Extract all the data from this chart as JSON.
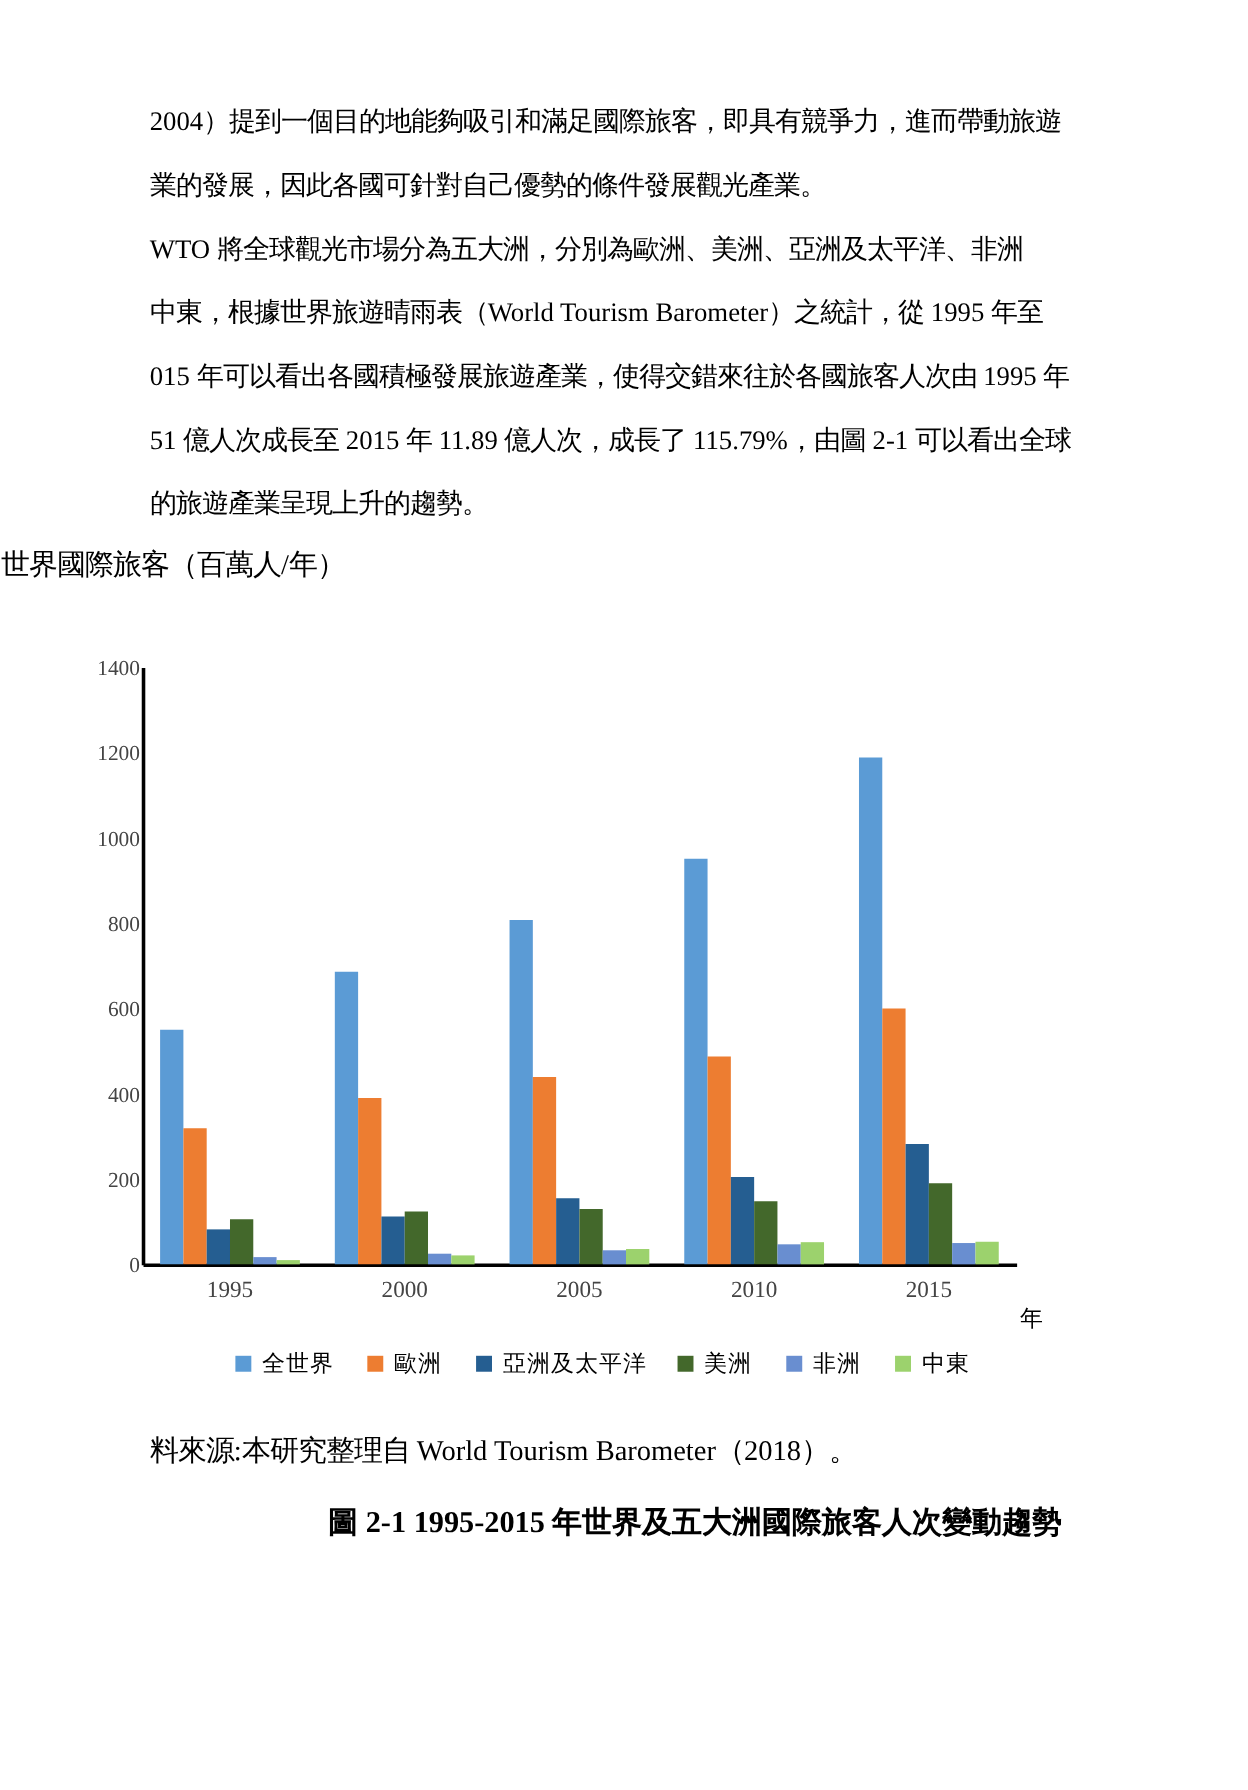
{
  "chart_data": {
    "type": "bar",
    "title": "圖 2-1 1995-2015 年世界及五大洲國際旅客人次變動趨勢",
    "ylabel": "世界國際旅客（百萬人/年）",
    "xlabel": "年",
    "categories": [
      "1995",
      "2000",
      "2005",
      "2010",
      "2015"
    ],
    "series": [
      {
        "name": "全世界",
        "color": "#5b9bd5",
        "values": [
          550,
          686,
          807,
          951,
          1188
        ]
      },
      {
        "name": "歐洲",
        "color": "#ed7d31",
        "values": [
          319,
          390,
          439,
          487,
          600
        ]
      },
      {
        "name": "亞洲及太平洋",
        "color": "#255e91",
        "values": [
          82,
          112,
          155,
          205,
          282
        ]
      },
      {
        "name": "美洲",
        "color": "#43682b",
        "values": [
          106,
          124,
          130,
          148,
          190
        ]
      },
      {
        "name": "非洲",
        "color": "#698ed0",
        "values": [
          17,
          25,
          33,
          47,
          50
        ]
      },
      {
        "name": "中東",
        "color": "#9cd26d",
        "values": [
          10,
          21,
          36,
          52,
          53
        ]
      }
    ],
    "ylim": [
      0,
      1400
    ],
    "yticks": [
      0,
      200,
      400,
      600,
      800,
      {
        "value": 1000,
        "label": "1000"
      },
      {
        "value": 1200,
        "label": "1200"
      },
      {
        "value": 1400,
        "label": "1400"
      }
    ],
    "grid": false,
    "legend": "bottom",
    "annotations": [
      "2004）提到一個目的地能夠吸引和滿足國際旅客，即具有競爭力，進而帶動旅遊",
      "業的發展，因此各國可針對自己優勢的條件發展觀光產業。",
      "　WTO 將全球觀光市場分為五大洲，分別為歐洲、美洲、亞洲及太平洋、非洲",
      "中東，根據世界旅遊晴雨表（World Tourism Barometer）之統計，從 1995 年至",
      "015 年可以看出各國積極發展旅遊產業，使得交錯來往於各國旅客人次由 1995 年",
      "51 億人次成長至 2015 年 11.89 億人次，成長了 115.79%，由圖 2-1 可以看出全球",
      "的旅遊產業呈現上升的趨勢。",
      "料來源:本研究整理自 World Tourism Barometer（2018）。"
    ]
  }
}
